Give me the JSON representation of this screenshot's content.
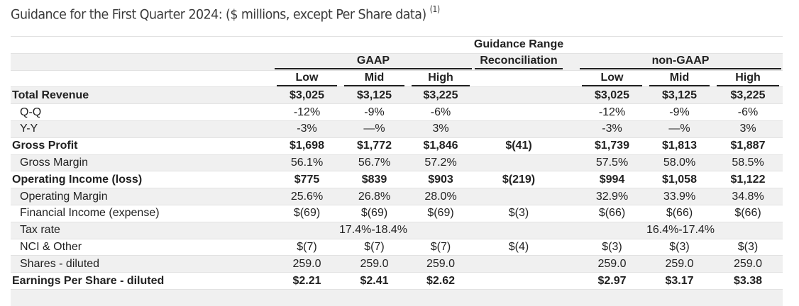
{
  "title": "Guidance for the First Quarter 2024: ($ millions, except Per Share data)",
  "title_footnote": "(1)",
  "headers": {
    "guidance_range": "Guidance Range",
    "gaap": "GAAP",
    "reconciliation": "Reconciliation",
    "non_gaap": "non-GAAP",
    "gaap_cols": [
      "Low",
      "Mid",
      "High"
    ],
    "non_gaap_cols": [
      "Low",
      "Mid",
      "High"
    ]
  },
  "rows": [
    {
      "label": "Total Revenue",
      "bold": true,
      "indent": false,
      "gaap": [
        "$3,025",
        "$3,125",
        "$3,225"
      ],
      "recon": "",
      "non_gaap": [
        "$3,025",
        "$3,125",
        "$3,225"
      ]
    },
    {
      "label": "Q-Q",
      "bold": false,
      "indent": true,
      "gaap": [
        "-12%",
        "-9%",
        "-6%"
      ],
      "recon": "",
      "non_gaap": [
        "-12%",
        "-9%",
        "-6%"
      ]
    },
    {
      "label": "Y-Y",
      "bold": false,
      "indent": true,
      "gaap": [
        "-3%",
        "—%",
        "3%"
      ],
      "recon": "",
      "non_gaap": [
        "-3%",
        "—%",
        "3%"
      ]
    },
    {
      "label": "Gross Profit",
      "bold": true,
      "indent": false,
      "gaap": [
        "$1,698",
        "$1,772",
        "$1,846"
      ],
      "recon": "$(41)",
      "non_gaap": [
        "$1,739",
        "$1,813",
        "$1,887"
      ]
    },
    {
      "label": "Gross Margin",
      "bold": false,
      "indent": true,
      "gaap": [
        "56.1%",
        "56.7%",
        "57.2%"
      ],
      "recon": "",
      "non_gaap": [
        "57.5%",
        "58.0%",
        "58.5%"
      ]
    },
    {
      "label": "Operating Income (loss)",
      "bold": true,
      "indent": false,
      "gaap": [
        "$775",
        "$839",
        "$903"
      ],
      "recon": "$(219)",
      "non_gaap": [
        "$994",
        "$1,058",
        "$1,122"
      ]
    },
    {
      "label": "Operating Margin",
      "bold": false,
      "indent": true,
      "gaap": [
        "25.6%",
        "26.8%",
        "28.0%"
      ],
      "recon": "",
      "non_gaap": [
        "32.9%",
        "33.9%",
        "34.8%"
      ]
    },
    {
      "label": "Financial Income (expense)",
      "bold": false,
      "indent": true,
      "gaap": [
        "$(69)",
        "$(69)",
        "$(69)"
      ],
      "recon": "$(3)",
      "non_gaap": [
        "$(66)",
        "$(66)",
        "$(66)"
      ]
    },
    {
      "label": "Tax rate",
      "bold": false,
      "indent": true,
      "gaap_range": "17.4%-18.4%",
      "recon": "",
      "non_gaap_range": "16.4%-17.4%"
    },
    {
      "label": "NCI & Other",
      "bold": false,
      "indent": true,
      "gaap": [
        "$(7)",
        "$(7)",
        "$(7)"
      ],
      "recon": "$(4)",
      "non_gaap": [
        "$(3)",
        "$(3)",
        "$(3)"
      ]
    },
    {
      "label": "Shares - diluted",
      "bold": false,
      "indent": true,
      "gaap": [
        "259.0",
        "259.0",
        "259.0"
      ],
      "recon": "",
      "non_gaap": [
        "259.0",
        "259.0",
        "259.0"
      ]
    },
    {
      "label": "Earnings Per Share - diluted",
      "bold": true,
      "indent": false,
      "gaap": [
        "$2.21",
        "$2.41",
        "$2.62"
      ],
      "recon": "",
      "non_gaap": [
        "$2.97",
        "$3.17",
        "$3.38"
      ]
    }
  ]
}
